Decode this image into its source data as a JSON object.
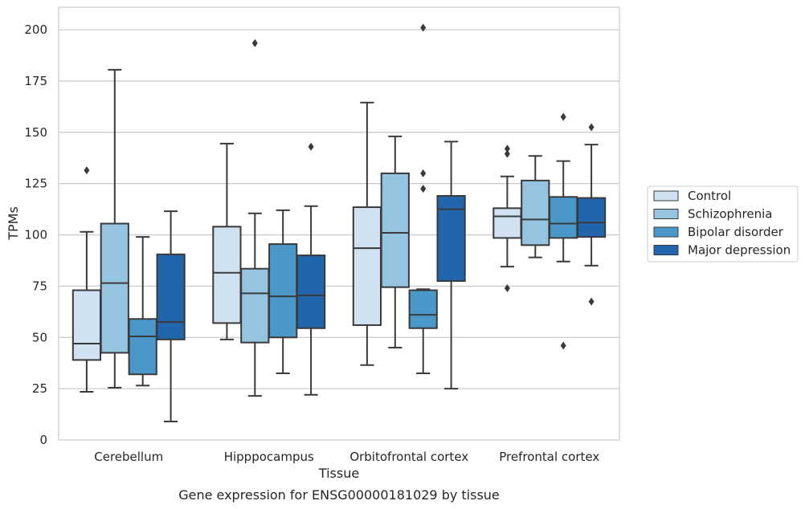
{
  "chart_data": {
    "type": "boxplot",
    "title": "",
    "caption": "Gene expression for ENSG00000181029 by tissue",
    "xlabel": "Tissue",
    "ylabel": "TPMs",
    "ylim": [
      0,
      211
    ],
    "yticks": [
      0,
      25,
      50,
      75,
      100,
      125,
      150,
      175,
      200
    ],
    "grid": "horizontal",
    "legend_position": "right",
    "categories": [
      "Cerebellum",
      "Hipppocampus",
      "Orbitofrontal cortex",
      "Prefrontal cortex"
    ],
    "series": [
      {
        "name": "Control",
        "color": "#d0e1f2",
        "boxes": [
          {
            "whislo": 23.5,
            "q1": 39,
            "med": 47,
            "q3": 73,
            "whishi": 101.5,
            "fliers": [
              131.5
            ]
          },
          {
            "whislo": 49,
            "q1": 57,
            "med": 81.5,
            "q3": 104,
            "whishi": 144.5,
            "fliers": []
          },
          {
            "whislo": 36.5,
            "q1": 56,
            "med": 93.5,
            "q3": 113.5,
            "whishi": 164.5,
            "fliers": []
          },
          {
            "whislo": 84.5,
            "q1": 98.5,
            "med": 109,
            "q3": 113,
            "whishi": 128.5,
            "fliers": [
              139.5,
              142,
              74
            ]
          }
        ]
      },
      {
        "name": "Schizophrenia",
        "color": "#94c4df",
        "boxes": [
          {
            "whislo": 25.5,
            "q1": 42.5,
            "med": 76.5,
            "q3": 105.5,
            "whishi": 180.5,
            "fliers": []
          },
          {
            "whislo": 21.5,
            "q1": 47.5,
            "med": 71.5,
            "q3": 83.5,
            "whishi": 110.5,
            "fliers": [
              193.5
            ]
          },
          {
            "whislo": 45,
            "q1": 74.5,
            "med": 101,
            "q3": 130,
            "whishi": 148,
            "fliers": []
          },
          {
            "whislo": 89,
            "q1": 95,
            "med": 107.5,
            "q3": 126.5,
            "whishi": 138.5,
            "fliers": []
          }
        ]
      },
      {
        "name": "Bipolar disorder",
        "color": "#4a98c9",
        "boxes": [
          {
            "whislo": 26.5,
            "q1": 32,
            "med": 50.5,
            "q3": 59,
            "whishi": 99,
            "fliers": []
          },
          {
            "whislo": 32.5,
            "q1": 50,
            "med": 70,
            "q3": 95.5,
            "whishi": 112,
            "fliers": []
          },
          {
            "whislo": 32.5,
            "q1": 54.5,
            "med": 61,
            "q3": 73,
            "whishi": 73.5,
            "fliers": [
              122.5,
              130,
              201
            ]
          },
          {
            "whislo": 87,
            "q1": 98.5,
            "med": 105.5,
            "q3": 118.5,
            "whishi": 136,
            "fliers": [
              157.5,
              46
            ]
          }
        ]
      },
      {
        "name": "Major depression",
        "color": "#2166ac",
        "boxes": [
          {
            "whislo": 9,
            "q1": 49,
            "med": 57.5,
            "q3": 90.5,
            "whishi": 111.5,
            "fliers": []
          },
          {
            "whislo": 22,
            "q1": 54.5,
            "med": 70.5,
            "q3": 90,
            "whishi": 114,
            "fliers": [
              143
            ]
          },
          {
            "whislo": 25,
            "q1": 77.5,
            "med": 112.5,
            "q3": 119,
            "whishi": 145.5,
            "fliers": []
          },
          {
            "whislo": 85,
            "q1": 99,
            "med": 106,
            "q3": 118,
            "whishi": 144,
            "fliers": [
              152.5,
              67.5
            ]
          }
        ]
      }
    ]
  }
}
